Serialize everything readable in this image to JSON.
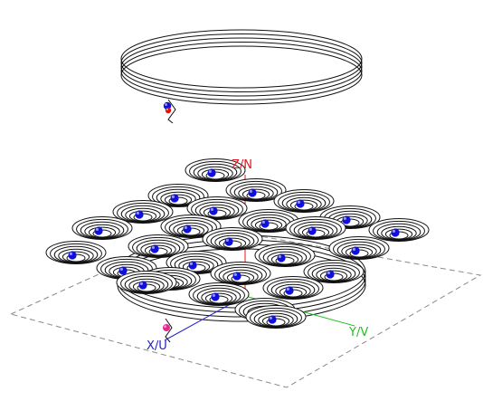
{
  "axes": {
    "z": {
      "label": "Z/N",
      "color": "#e8141e"
    },
    "y": {
      "label": "Y/V",
      "color": "#22c21a"
    },
    "x": {
      "label": "X/U",
      "color": "#2222cc"
    }
  },
  "colors": {
    "coil_line": "#111111",
    "ground_plane": "#8a8a8a",
    "node_blue": "#1010dd",
    "node_pink": "#e02a8a",
    "node_red": "#dd1111"
  },
  "top_coil": {
    "turns": 5,
    "feed_node": "top-coil-feed-node"
  },
  "bottom_coil": {
    "turns": 4,
    "feed_node": "bottom-coil-feed-node"
  },
  "small_coils": {
    "count": 27,
    "turns": 6
  }
}
